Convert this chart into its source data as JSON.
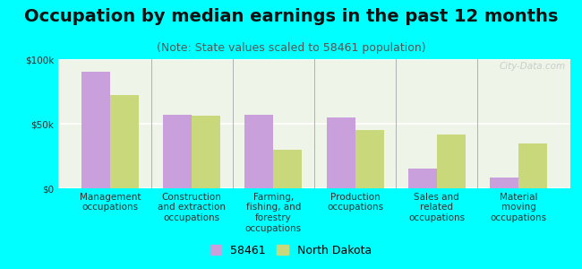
{
  "title": "Occupation by median earnings in the past 12 months",
  "subtitle": "(Note: State values scaled to 58461 population)",
  "categories": [
    "Management\noccupations",
    "Construction\nand extraction\noccupations",
    "Farming,\nfishing, and\nforestry\noccupations",
    "Production\noccupations",
    "Sales and\nrelated\noccupations",
    "Material\nmoving\noccupations"
  ],
  "values_58461": [
    90000,
    57000,
    57000,
    55000,
    15000,
    8000
  ],
  "values_nd": [
    72000,
    56000,
    30000,
    45000,
    42000,
    35000
  ],
  "color_58461": "#c9a0dc",
  "color_nd": "#c8d87a",
  "ylim": [
    0,
    100000
  ],
  "yticks": [
    0,
    50000,
    100000
  ],
  "ytick_labels": [
    "$0",
    "$50k",
    "$100k"
  ],
  "background_color": "#00ffff",
  "plot_bg": "#eef5e8",
  "legend_label_1": "58461",
  "legend_label_2": "North Dakota",
  "watermark": "City-Data.com",
  "bar_width": 0.35,
  "title_fontsize": 14,
  "subtitle_fontsize": 9,
  "tick_fontsize": 7.5,
  "legend_fontsize": 9
}
